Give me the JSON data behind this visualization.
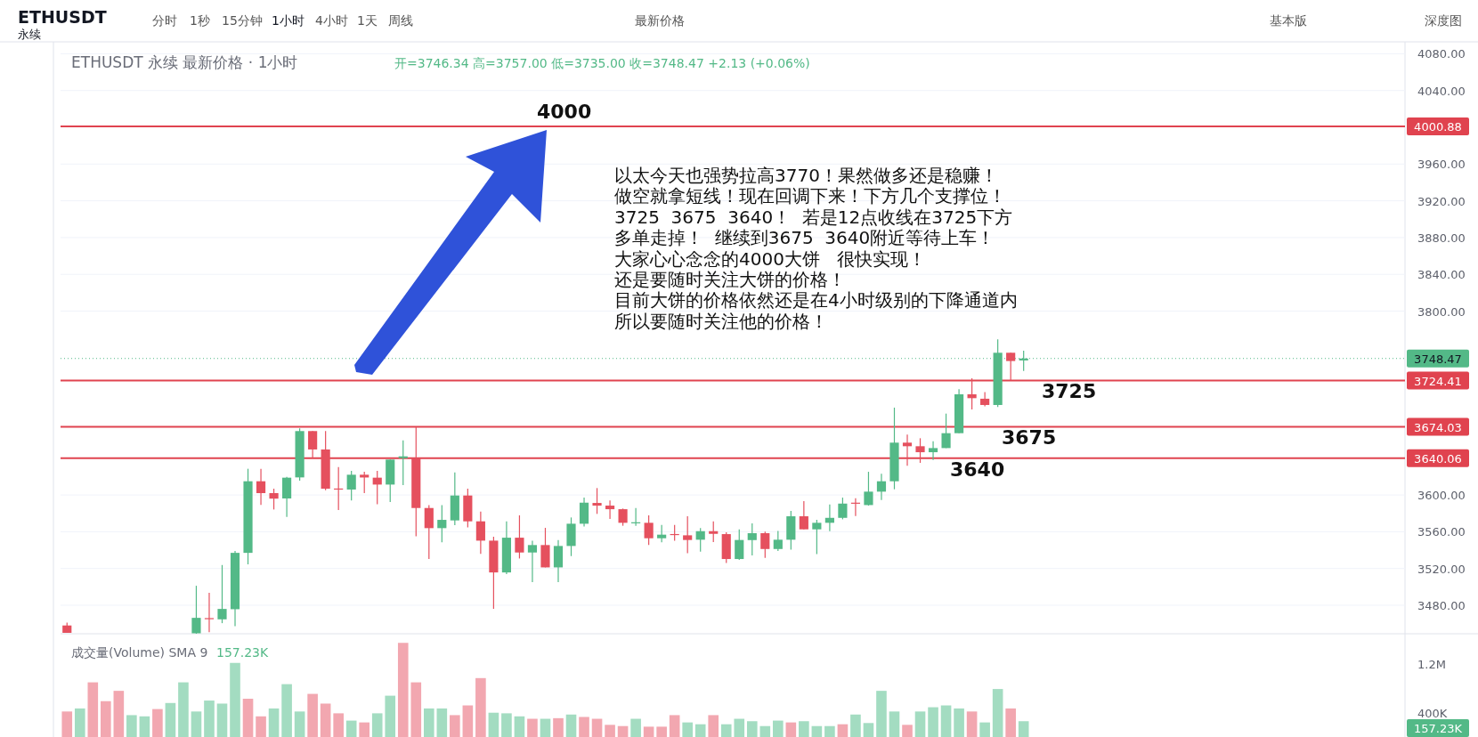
{
  "chart_data": [
    {
      "type": "candlestick",
      "title": "ETHUSDT 永续 最新价格 · 1小时",
      "subtitle": "开=3746.34 高=3757.00 低=3735.00 收=3748.47 +2.13 (+0.06%)",
      "categories": [
        null,
        null,
        null,
        null,
        null,
        null,
        null,
        null,
        null,
        null,
        null,
        null,
        null,
        null,
        null,
        null,
        null,
        null,
        null,
        null,
        null,
        null,
        null,
        null,
        null,
        null,
        null,
        null,
        null,
        null,
        null,
        null,
        null,
        null,
        null,
        null,
        null,
        null,
        null,
        null,
        null,
        null,
        null,
        null,
        null,
        null,
        null,
        null,
        null,
        null,
        null,
        null,
        null,
        null,
        null,
        null,
        null,
        null,
        null,
        null,
        null,
        null,
        null,
        null,
        null,
        null,
        null,
        null,
        null,
        null,
        null,
        null,
        null,
        null,
        null,
        null,
        null,
        null,
        null,
        null,
        null,
        null,
        null,
        null,
        null,
        null,
        null,
        null,
        null,
        null,
        null,
        null,
        null,
        null,
        null,
        null,
        null,
        null,
        null,
        null,
        null,
        null,
        null,
        null
      ],
      "ohlc": [
        [
          3458,
          3461,
          3450,
          3450
        ],
        null,
        null,
        null,
        null,
        null,
        null,
        null,
        null,
        null,
        [
          3449.5,
          3501.2,
          3449,
          3466.3
        ],
        [
          3466,
          3493.5,
          3450.8,
          3465
        ],
        [
          3464.7,
          3523.8,
          3460.5,
          3476
        ],
        [
          3475.7,
          3539,
          3457.3,
          3537
        ],
        [
          3537,
          3628.5,
          3524.5,
          3614.9
        ],
        [
          3614.9,
          3628.5,
          3589.1,
          3602
        ],
        [
          3602,
          3606.8,
          3584.2,
          3596
        ],
        [
          3596.2,
          3619.7,
          3576,
          3618.8
        ],
        [
          3619.1,
          3672.4,
          3615.5,
          3669.5
        ],
        [
          3669.5,
          3669.5,
          3640.1,
          3649.5
        ],
        [
          3649.5,
          3669.5,
          3605.2,
          3606.8
        ],
        [
          3607,
          3630.4,
          3583.6,
          3606.8
        ],
        [
          3605.9,
          3626.2,
          3593.9,
          3622
        ],
        [
          3622,
          3625.2,
          3602,
          3619
        ],
        [
          3618.8,
          3626.2,
          3590,
          3611.3
        ],
        [
          3611.3,
          3638.5,
          3592.3,
          3638.5
        ],
        [
          3640,
          3659.5,
          3610.7,
          3642
        ],
        [
          3640.1,
          3673.7,
          3555,
          3585.8
        ],
        [
          3585.8,
          3589,
          3530.3,
          3563.9
        ],
        [
          3563.9,
          3589,
          3548.4,
          3572.9
        ],
        [
          3572.3,
          3624.6,
          3567.1,
          3599.4
        ],
        [
          3599.4,
          3606.8,
          3564.8,
          3571.3
        ],
        [
          3571.3,
          3582,
          3535.8,
          3550.3
        ],
        [
          3550.3,
          3554.5,
          3476,
          3515.7
        ],
        [
          3515.7,
          3571.3,
          3514,
          3553.5
        ],
        [
          3553.5,
          3577.8,
          3530.9,
          3537.4
        ],
        [
          3537.4,
          3550.3,
          3505.1,
          3545.5
        ],
        [
          3545.5,
          3564.2,
          3521.2,
          3521.2
        ],
        [
          3521.2,
          3551,
          3505.1,
          3544.5
        ],
        [
          3544.5,
          3575.5,
          3533.5,
          3568.7
        ],
        [
          3568.7,
          3597.1,
          3565.8,
          3591.6
        ],
        [
          3591.3,
          3607.5,
          3579.4,
          3588.4
        ],
        [
          3588.4,
          3593.9,
          3573.9,
          3584.5
        ],
        [
          3584.5,
          3585.2,
          3566.5,
          3569.7
        ],
        [
          3570,
          3585.8,
          3566.5,
          3570.3
        ],
        [
          3569.7,
          3577.8,
          3545.5,
          3552.9
        ],
        [
          3552.9,
          3567.4,
          3548.4,
          3556.8
        ],
        [
          3557.5,
          3567.4,
          3550.3,
          3557.2
        ],
        [
          3556.1,
          3576.8,
          3536.7,
          3551
        ],
        [
          3551.3,
          3563.9,
          3538.3,
          3560.6
        ],
        [
          3560.6,
          3571.3,
          3548.7,
          3557.7
        ],
        [
          3557.4,
          3559.3,
          3526.1,
          3530.3
        ],
        [
          3530.3,
          3562.6,
          3529.3,
          3551
        ],
        [
          3550.9,
          3569,
          3534.1,
          3558.4
        ],
        [
          3558.4,
          3560,
          3531.5,
          3541.2
        ],
        [
          3541.2,
          3560.9,
          3539,
          3551.3
        ],
        [
          3551.3,
          3582.6,
          3540.6,
          3576.8
        ],
        [
          3576.8,
          3593.2,
          3562.6,
          3562.6
        ],
        [
          3562.6,
          3572.9,
          3535.7,
          3569.7
        ],
        [
          3569.7,
          3589.7,
          3560.6,
          3575.1
        ],
        [
          3575.1,
          3597.1,
          3573.5,
          3590.6
        ],
        [
          3591.6,
          3596.5,
          3577.1,
          3591.3
        ],
        [
          3589,
          3625.2,
          3588.4,
          3603.6
        ],
        [
          3603.6,
          3623,
          3594.5,
          3614.9
        ],
        [
          3614.9,
          3695,
          3606.2,
          3656.9
        ],
        [
          3656.9,
          3665.6,
          3631.7,
          3653
        ],
        [
          3653,
          3661.7,
          3634.9,
          3646.5
        ],
        [
          3646.5,
          3658.5,
          3638.1,
          3651
        ],
        [
          3651,
          3688.5,
          3651,
          3667.2
        ],
        [
          3667.2,
          3715,
          3667.2,
          3709.5
        ],
        [
          3709.5,
          3727,
          3693,
          3705.3
        ],
        [
          3704.7,
          3711.8,
          3696.3,
          3697.9
        ],
        [
          3697.9,
          3769.3,
          3695.6,
          3754.7
        ],
        [
          3754.7,
          3754.7,
          3724.7,
          3745.7
        ],
        [
          3746.34,
          3757,
          3735,
          3748.47
        ],
        null,
        null,
        null,
        null,
        null,
        null,
        null,
        null,
        null,
        null,
        null,
        null,
        null,
        null,
        null,
        null,
        null,
        null,
        null,
        null,
        null,
        null,
        null,
        null,
        null,
        null,
        null,
        null,
        null
      ],
      "colors": [
        "#e5505e",
        null,
        null,
        null,
        null,
        null,
        null,
        null,
        null,
        null,
        "#53b987",
        "#e5505e",
        "#53b987",
        "#53b987",
        "#53b987",
        "#e5505e",
        "#e5505e",
        "#53b987",
        "#53b987",
        "#e5505e",
        "#e5505e",
        "#e5505e",
        "#53b987",
        "#e5505e",
        "#e5505e",
        "#53b987",
        "#53b987",
        "#e5505e",
        "#e5505e",
        "#53b987",
        "#53b987",
        "#e5505e",
        "#e5505e",
        "#e5505e",
        "#53b987",
        "#e5505e",
        "#53b987",
        "#e5505e",
        "#53b987",
        "#53b987",
        "#53b987",
        "#e5505e",
        "#e5505e",
        "#e5505e",
        "#53b987",
        "#e5505e",
        "#53b987",
        "#e5505e",
        "#e5505e",
        "#53b987",
        "#e5505e",
        "#e5505e",
        "#53b987",
        "#53b987",
        "#e5505e",
        "#53b987",
        "#53b987",
        "#e5505e",
        "#53b987",
        "#53b987",
        "#53b987",
        "#e5505e",
        "#53b987",
        "#53b987",
        "#53b987",
        "#e5505e",
        "#e5505e",
        "#53b987",
        "#53b987",
        "#53b987",
        "#e5505e",
        "#e5505e",
        "#53b987",
        "#e5505e",
        "#53b987",
        null,
        null,
        null,
        null,
        null,
        null,
        null,
        null,
        null,
        null,
        null,
        null,
        null,
        null,
        null,
        null,
        null,
        null,
        null,
        null,
        null,
        null,
        null,
        null,
        null,
        null,
        null,
        null,
        null
      ],
      "ylim": [
        3449,
        4092
      ],
      "yticks": [
        {
          "value": 3480,
          "label": "3480.00"
        },
        {
          "value": 3520,
          "label": "3520.00"
        },
        {
          "value": 3560,
          "label": "3560.00"
        },
        {
          "value": 3600,
          "label": "3600.00"
        },
        {
          "value": 3800,
          "label": "3800.00"
        },
        {
          "value": 3840,
          "label": "3840.00"
        },
        {
          "value": 3880,
          "label": "3880.00"
        },
        {
          "value": 3920,
          "label": "3920.00"
        },
        {
          "value": 3960,
          "label": "3960.00"
        },
        {
          "value": 4040,
          "label": "4040.00"
        },
        {
          "value": 4080,
          "label": "4080.00"
        }
      ],
      "grid": "y",
      "ref_lines": [
        {
          "axis": "y",
          "value": 4000.88,
          "label": "4000.88",
          "color": "#e0434f"
        },
        {
          "axis": "y",
          "value": 3724.41,
          "label": "3724.41",
          "color": "#e0434f"
        },
        {
          "axis": "y",
          "value": 3674.03,
          "label": "3674.03",
          "color": "#e0434f"
        },
        {
          "axis": "y",
          "value": 3640.06,
          "label": "3640.06",
          "color": "#e0434f"
        },
        {
          "axis": "y",
          "value": 3748.47,
          "label": "3748.47",
          "color": "#53b987",
          "line_style": "dotted"
        }
      ],
      "annotations": [
        "ETHUSDT",
        "永续",
        "分时",
        "1秒",
        "15分钟",
        "1小时",
        "4小时",
        "1天",
        "周线",
        "最新价格",
        "基本版",
        "深度图",
        {
          "text": "4000",
          "y": 4000
        },
        "以太今天也强势拉高3770！果然做多还是稳赚！",
        "做空就拿短线！现在回调下来！下方几个支撑位！",
        "3725  3675  3640！  若是12点收线在3725下方",
        "多单走掉！  继续到3675  3640附近等待上车！",
        "大家心心念念的4000大饼   很快实现！",
        "还是要随时关注大饼的价格！",
        "目前大饼的价格依然还是在4小时级别的下降通道内",
        "所以要随时关注他的价格！",
        {
          "text": "3725",
          "y": 3725
        },
        {
          "text": "3675",
          "y": 3675
        },
        {
          "text": "3640",
          "y": 3640
        }
      ]
    },
    {
      "type": "bar",
      "title": "成交量(Volume) SMA 9",
      "subtitle": "157.23K",
      "categories": [
        null,
        null,
        null,
        null,
        null,
        null,
        null,
        null,
        null,
        null,
        null,
        null,
        null,
        null,
        null,
        null,
        null,
        null,
        null,
        null,
        null,
        null,
        null,
        null,
        null,
        null,
        null,
        null,
        null,
        null,
        null,
        null,
        null,
        null,
        null,
        null,
        null,
        null,
        null,
        null,
        null,
        null,
        null,
        null,
        null,
        null,
        null,
        null,
        null,
        null,
        null,
        null,
        null,
        null,
        null,
        null,
        null,
        null,
        null,
        null,
        null,
        null,
        null,
        null,
        null,
        null,
        null,
        null,
        null,
        null,
        null,
        null,
        null,
        null,
        null,
        null,
        null,
        null,
        null,
        null,
        null,
        null,
        null,
        null,
        null,
        null,
        null,
        null,
        null,
        null,
        null,
        null,
        null,
        null,
        null,
        null,
        null,
        null,
        null,
        null,
        null,
        null,
        null,
        null
      ],
      "values": [
        420000,
        470000,
        900000,
        590000,
        760000,
        360000,
        340000,
        460000,
        560000,
        900000,
        420000,
        600000,
        550000,
        1220000,
        630000,
        340000,
        470000,
        870000,
        420000,
        710000,
        550000,
        390000,
        270000,
        240000,
        390000,
        680000,
        1550000,
        900000,
        470000,
        470000,
        360000,
        520000,
        970000,
        400000,
        390000,
        340000,
        300000,
        300000,
        310000,
        370000,
        330000,
        300000,
        200000,
        180000,
        300000,
        170000,
        170000,
        360000,
        240000,
        210000,
        360000,
        210000,
        300000,
        260000,
        180000,
        270000,
        240000,
        260000,
        180000,
        180000,
        210000,
        370000,
        230000,
        760000,
        420000,
        200000,
        420000,
        490000,
        520000,
        470000,
        420000,
        240000,
        790000,
        470000,
        260000,
        null,
        null,
        null,
        null,
        null,
        null,
        null,
        null,
        null,
        null,
        null,
        null,
        null,
        null,
        null,
        null,
        null,
        null,
        null,
        null,
        null,
        null,
        null,
        null,
        null,
        null,
        null,
        null,
        null
      ],
      "colors": [
        "#f2a7b0",
        "#a3dcc1",
        "#f2a7b0",
        "#f2a7b0",
        "#f2a7b0",
        "#a3dcc1",
        "#a3dcc1",
        "#f2a7b0",
        "#a3dcc1",
        "#a3dcc1",
        "#a3dcc1",
        "#a3dcc1",
        "#a3dcc1",
        "#a3dcc1",
        "#f2a7b0",
        "#f2a7b0",
        "#a3dcc1",
        "#a3dcc1",
        "#a3dcc1",
        "#f2a7b0",
        "#f2a7b0",
        "#f2a7b0",
        "#a3dcc1",
        "#f2a7b0",
        "#a3dcc1",
        "#a3dcc1",
        "#f2a7b0",
        "#f2a7b0",
        "#a3dcc1",
        "#a3dcc1",
        "#f2a7b0",
        "#f2a7b0",
        "#f2a7b0",
        "#a3dcc1",
        "#a3dcc1",
        "#a3dcc1",
        "#f2a7b0",
        "#a3dcc1",
        "#f2a7b0",
        "#a3dcc1",
        "#f2a7b0",
        "#f2a7b0",
        "#f2a7b0",
        "#f2a7b0",
        "#a3dcc1",
        "#f2a7b0",
        "#f2a7b0",
        "#f2a7b0",
        "#a3dcc1",
        "#a3dcc1",
        "#f2a7b0",
        "#a3dcc1",
        "#a3dcc1",
        "#a3dcc1",
        "#a3dcc1",
        "#a3dcc1",
        "#f2a7b0",
        "#a3dcc1",
        "#a3dcc1",
        "#a3dcc1",
        "#f2a7b0",
        "#a3dcc1",
        "#a3dcc1",
        "#a3dcc1",
        "#a3dcc1",
        "#f2a7b0",
        "#a3dcc1",
        "#a3dcc1",
        "#a3dcc1",
        "#a3dcc1",
        "#f2a7b0",
        "#a3dcc1",
        "#a3dcc1",
        "#f2a7b0",
        "#a3dcc1",
        null,
        null,
        null,
        null,
        null,
        null,
        null,
        null,
        null,
        null,
        null,
        null,
        null,
        null,
        null,
        null,
        null,
        null,
        null,
        null,
        null,
        null,
        null,
        null,
        null,
        null,
        null,
        null,
        null
      ],
      "ylim": [
        0,
        1700000
      ],
      "yticks": [
        {
          "value": 1200000,
          "label": "1.2M"
        },
        {
          "value": 400000,
          "label": "400K"
        }
      ],
      "annotations": [
        "157.23K"
      ]
    }
  ]
}
